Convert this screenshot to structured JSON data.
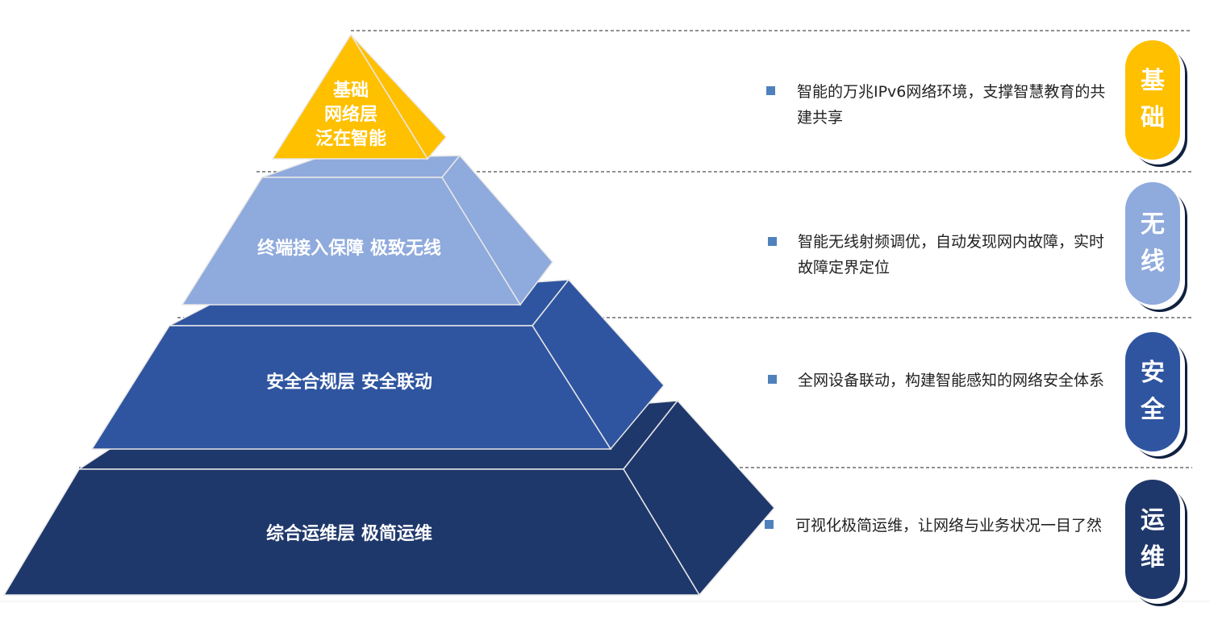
{
  "colors": {
    "gold": "#FFC000",
    "light_blue": "#8FAADC",
    "mid_blue": "#2F55A0",
    "dark_blue": "#1F386B",
    "bullet": "#4F81BD"
  },
  "layers": [
    {
      "label_lines": [
        "基础",
        "网络层",
        "泛在智能"
      ],
      "description": "智能的万兆IPv6网络环境，支撑智慧教育的共建共享",
      "badge": [
        "基",
        "础"
      ]
    },
    {
      "label": "终端接入保障 极致无线",
      "description": "智能无线射频调优，自动发现网内故障，实时故障定界定位",
      "badge": [
        "无",
        "线"
      ]
    },
    {
      "label": "安全合规层 安全联动",
      "description": "全网设备联动，构建智能感知的网络安全体系",
      "badge": [
        "安",
        "全"
      ]
    },
    {
      "label": "综合运维层 极简运维",
      "description": "可视化极简运维，让网络与业务状况一目了然",
      "badge": [
        "运",
        "维"
      ]
    }
  ]
}
